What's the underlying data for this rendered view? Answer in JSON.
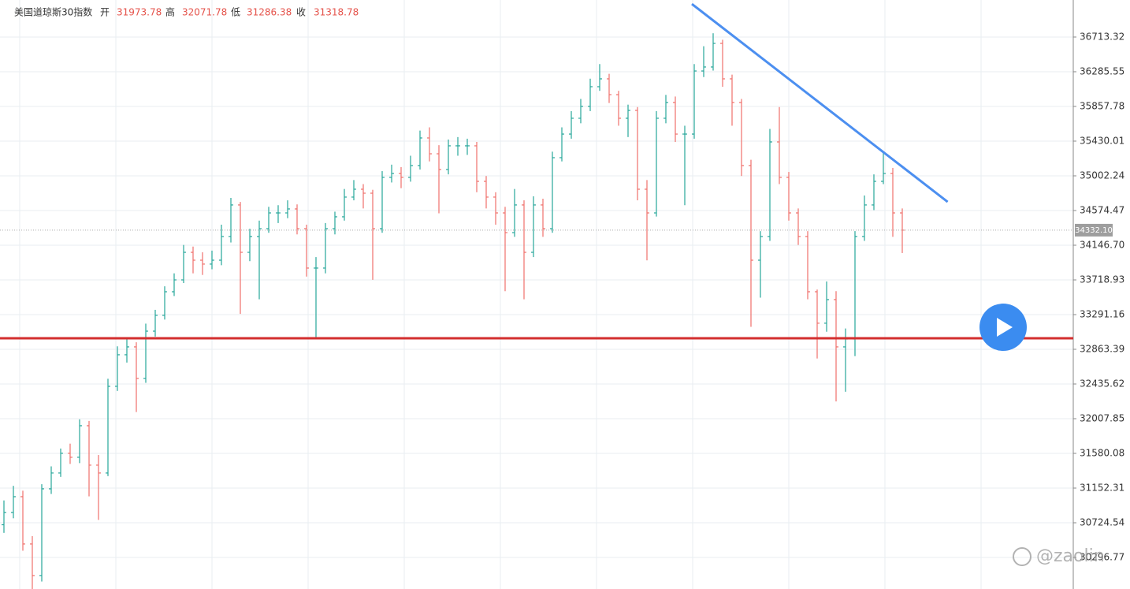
{
  "chart_data": {
    "type": "ohlc",
    "header": {
      "title": "美国道琼斯30指数",
      "open_label": "开",
      "open": 31973.78,
      "high_label": "高",
      "high": 32071.78,
      "low_label": "低",
      "low": 31286.38,
      "close_label": "收",
      "close": 31318.78
    },
    "up_color": "#26a69a",
    "down_color": "#ef6f6a",
    "open": [
      30700,
      30852,
      31046,
      30463,
      30074,
      31143,
      31338,
      31581,
      31532,
      31921,
      31435,
      31338,
      32407,
      32796,
      32893,
      32504,
      33087,
      33282,
      33573,
      33719,
      34059,
      33962,
      33914,
      33962,
      34254,
      34643,
      34059,
      34254,
      34351,
      34545,
      34545,
      34594,
      34351,
      33865,
      33865,
      34351,
      34497,
      34740,
      34837,
      34788,
      34351,
      34983,
      35031,
      34983,
      35129,
      35469,
      35274,
      35080,
      35372,
      35372,
      35372,
      34934,
      34740,
      34545,
      34302,
      34643,
      34059,
      34643,
      34351,
      35226,
      35517,
      35712,
      35858,
      36101,
      36198,
      36003,
      35712,
      35809,
      34837,
      34545,
      35712,
      35906,
      35517,
      35517,
      36295,
      36344,
      36635,
      36198,
      35906,
      35129,
      33962,
      34254,
      35420,
      34983,
      34545,
      34254,
      33573,
      33185,
      33476,
      32893,
      32990,
      34254,
      34643,
      34934,
      35031,
      34545
    ],
    "high": [
      31000,
      31180,
      31120,
      30560,
      31200,
      31420,
      31640,
      31700,
      32000,
      31980,
      31560,
      32500,
      32900,
      33000,
      32950,
      33180,
      33350,
      33640,
      33800,
      34150,
      34130,
      34060,
      34080,
      34400,
      34730,
      34680,
      34350,
      34450,
      34620,
      34640,
      34700,
      34650,
      34400,
      34000,
      34420,
      34560,
      34840,
      34950,
      34900,
      34830,
      35060,
      35140,
      35110,
      35250,
      35560,
      35600,
      35380,
      35450,
      35480,
      35460,
      35420,
      35000,
      34800,
      34620,
      34840,
      34700,
      34750,
      34720,
      35300,
      35600,
      35800,
      35950,
      36200,
      36380,
      36260,
      36050,
      35880,
      35850,
      34950,
      35800,
      36000,
      35980,
      35620,
      36380,
      36600,
      36760,
      36680,
      36250,
      35950,
      35200,
      34320,
      35580,
      35850,
      35050,
      34600,
      34320,
      33600,
      33700,
      33580,
      33120,
      34320,
      34760,
      35020,
      35300,
      35100,
      34600
    ],
    "low": [
      30600,
      30780,
      30380,
      29880,
      30000,
      31080,
      31290,
      31450,
      31460,
      31050,
      30760,
      31300,
      32350,
      32700,
      32090,
      32450,
      33020,
      33230,
      33520,
      33680,
      33800,
      33780,
      33850,
      33900,
      34180,
      33300,
      33950,
      33480,
      34300,
      34420,
      34480,
      34280,
      33760,
      33010,
      33800,
      34280,
      34450,
      34700,
      34600,
      33720,
      34300,
      34920,
      34850,
      34930,
      35080,
      35180,
      34540,
      35020,
      35250,
      35260,
      34800,
      34600,
      34400,
      33580,
      34250,
      33480,
      34000,
      34250,
      34300,
      35180,
      35460,
      35650,
      35800,
      36050,
      35900,
      35620,
      35480,
      34700,
      33960,
      34500,
      35650,
      35420,
      34640,
      35460,
      36220,
      36300,
      36100,
      35620,
      35000,
      33140,
      33500,
      34200,
      34900,
      34450,
      34150,
      33480,
      32750,
      33080,
      32220,
      32340,
      32780,
      34200,
      34580,
      34900,
      34250,
      34050
    ],
    "close": [
      30852,
      31046,
      30463,
      30074,
      31143,
      31338,
      31581,
      31532,
      31921,
      31435,
      31338,
      32407,
      32796,
      32893,
      32504,
      33087,
      33282,
      33573,
      33719,
      34059,
      33962,
      33914,
      33962,
      34254,
      34643,
      34059,
      34254,
      34351,
      34545,
      34545,
      34594,
      34351,
      33865,
      33865,
      34351,
      34497,
      34740,
      34837,
      34788,
      34351,
      34983,
      35031,
      34983,
      35129,
      35469,
      35274,
      35080,
      35372,
      35372,
      35372,
      34934,
      34740,
      34545,
      34302,
      34643,
      34059,
      34643,
      34351,
      35226,
      35517,
      35712,
      35858,
      36101,
      36198,
      36003,
      35712,
      35809,
      34837,
      34545,
      35712,
      35906,
      35517,
      35517,
      36295,
      36344,
      36635,
      36198,
      35906,
      35129,
      33962,
      34254,
      35420,
      34983,
      34545,
      34254,
      33573,
      33185,
      33476,
      32893,
      32990,
      34254,
      34643,
      34934,
      35031,
      34545,
      34332.1
    ],
    "ylim": [
      29908,
      37170
    ],
    "yticks": [
      36713.32,
      36285.55,
      35857.78,
      35430.01,
      35002.24,
      34574.47,
      {
        "value": 34146.7,
        "label": "34146.70"
      },
      33718.93,
      33291.16,
      32863.39,
      32435.62,
      32007.85,
      31580.08,
      31152.31,
      30724.54,
      30296.77
    ],
    "grid": true,
    "last_price": {
      "value": 34332.1,
      "label": "34332.10"
    },
    "support_line": {
      "value": 33000,
      "color": "#d32f2f"
    },
    "trend_line": {
      "x": [
        72.75,
        99.8
      ],
      "y": [
        37121,
        34681
      ],
      "color": "#4c8ff0"
    },
    "watermark": "@zaolin"
  }
}
